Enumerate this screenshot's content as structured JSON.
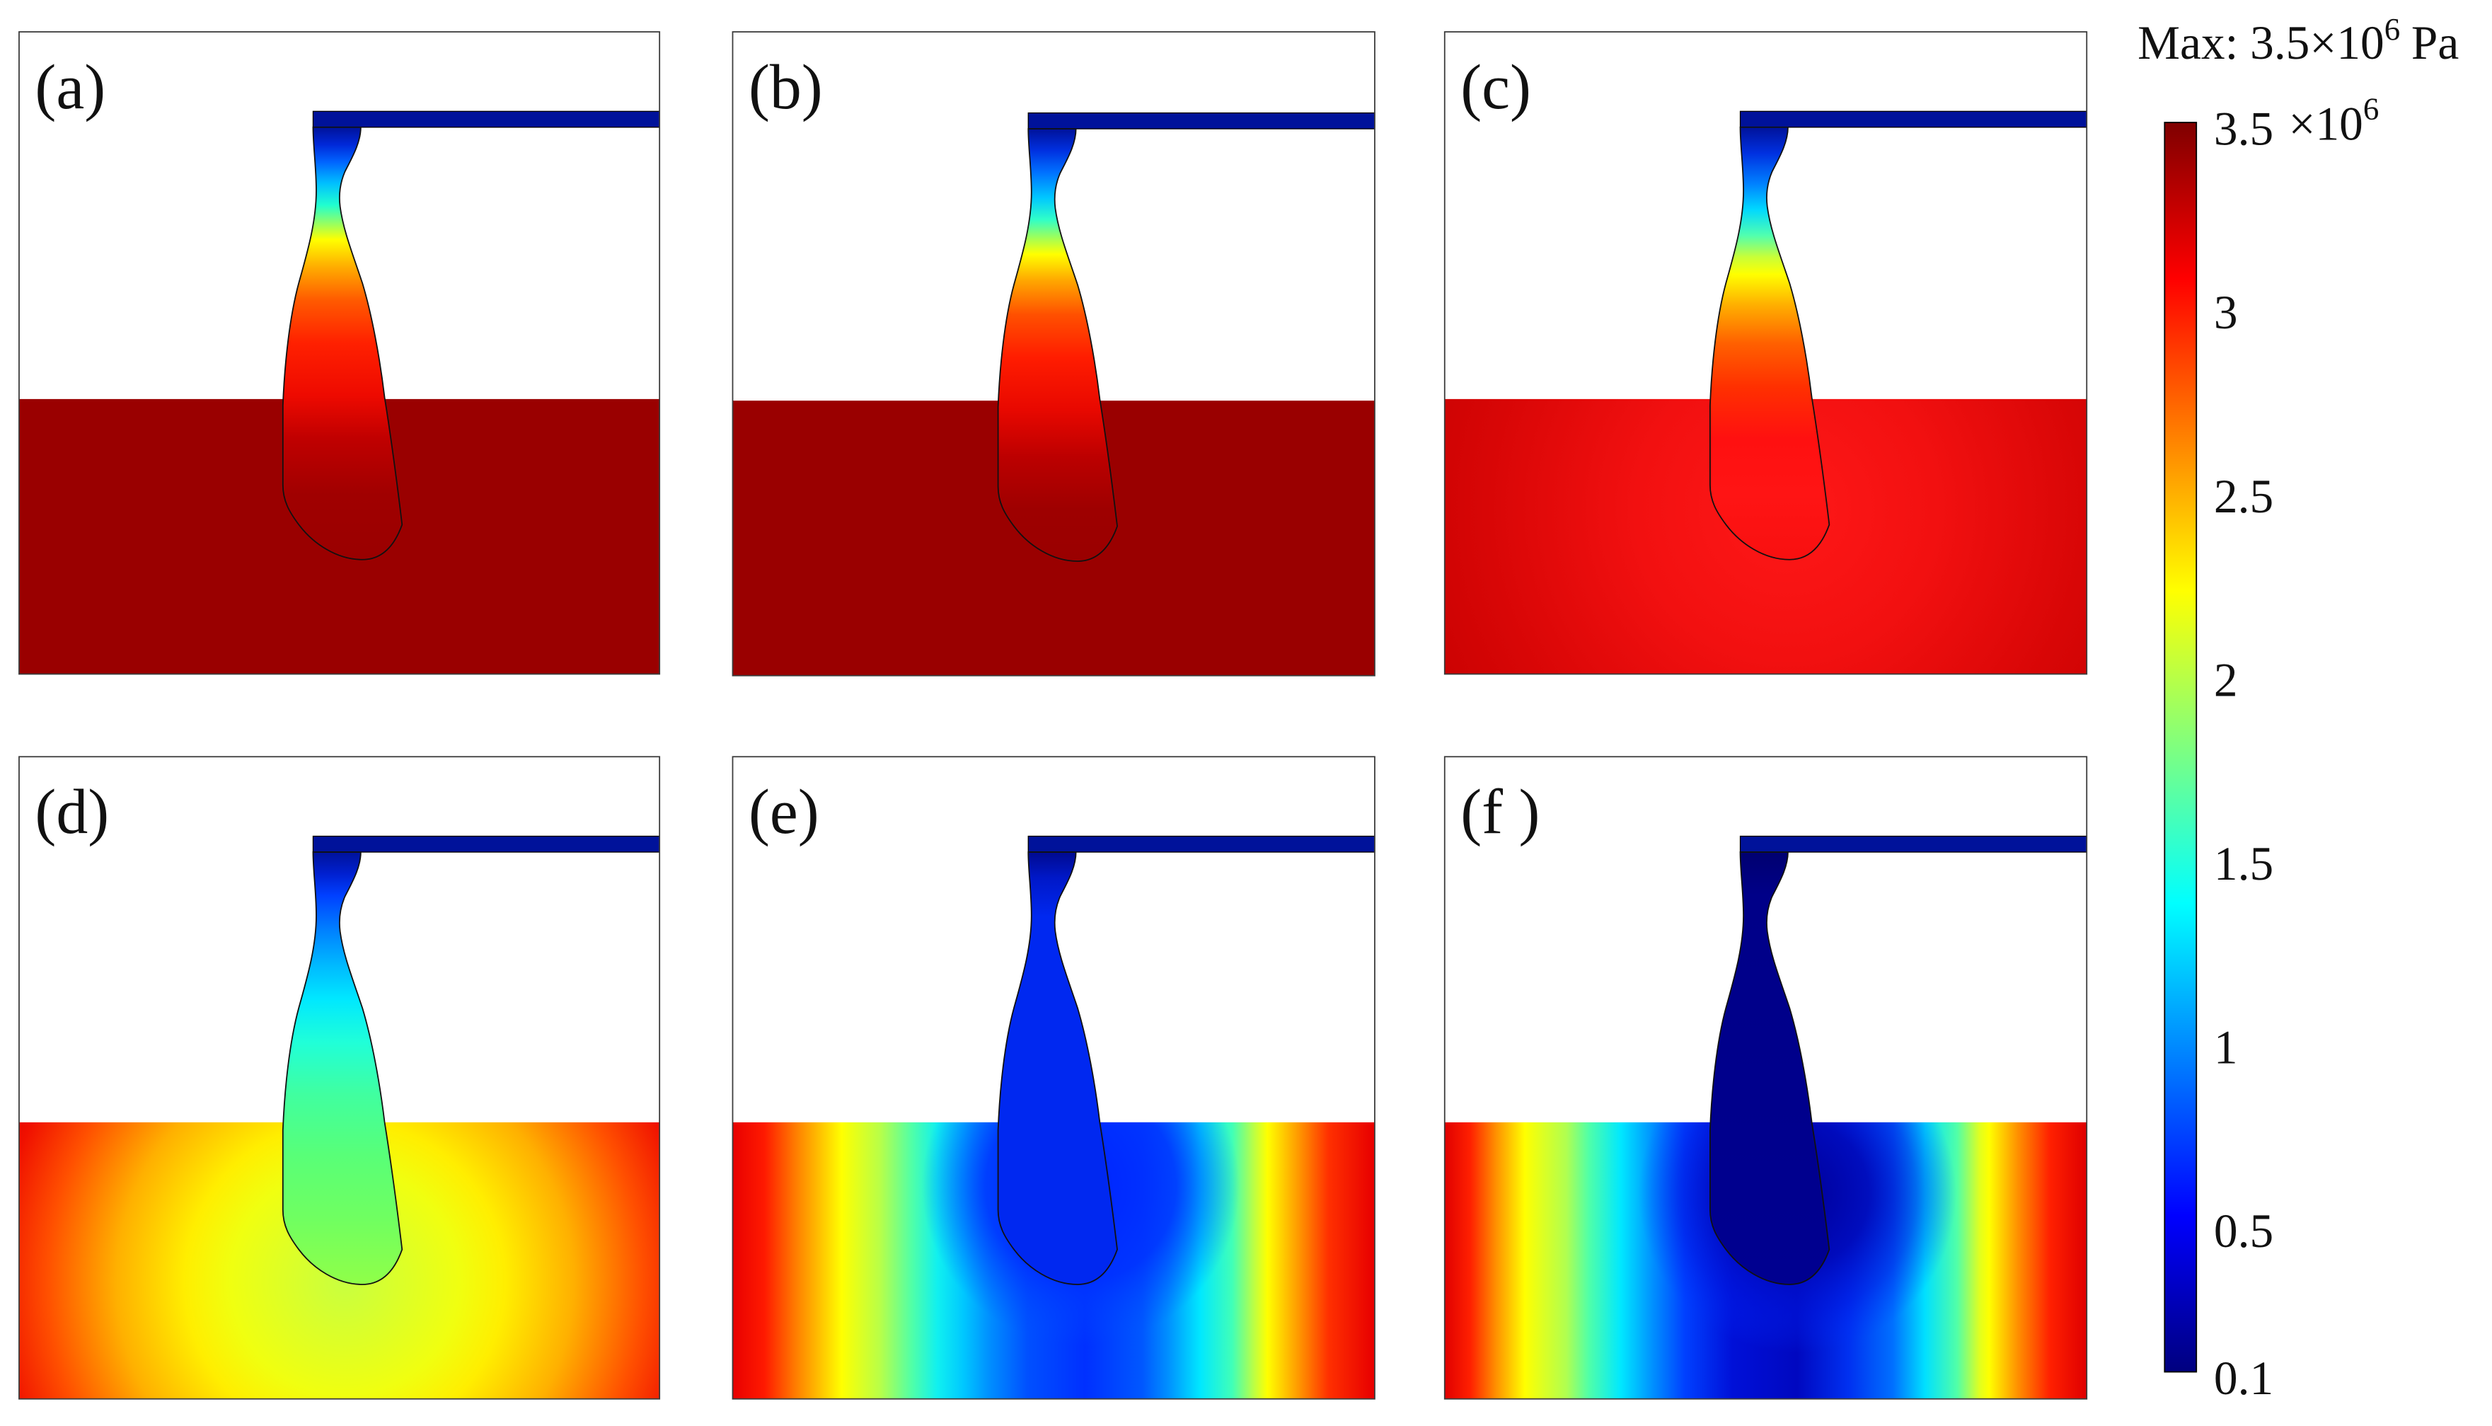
{
  "chart_data": {
    "type": "heatmap",
    "max_label": {
      "text": "Max: 3.5×10",
      "exponent": "6",
      "unit": "Pa"
    },
    "panels": [
      {
        "label": "(a)"
      },
      {
        "label": "(b)"
      },
      {
        "label": "(c)"
      },
      {
        "label": "(d)"
      },
      {
        "label": "(e)"
      },
      {
        "label": "(f )"
      }
    ],
    "colorbar": {
      "min": 0.1,
      "max": 3.5,
      "ticks": [
        3.5,
        3,
        2.5,
        2,
        1.5,
        1,
        0.5,
        0.1
      ],
      "multiplier": "×10",
      "exponent": "6",
      "colors": [
        "#00007f",
        "#0000ff",
        "#007fff",
        "#00ffff",
        "#7fff7f",
        "#ffff00",
        "#ff7f00",
        "#ff0000",
        "#7f0000"
      ]
    }
  }
}
